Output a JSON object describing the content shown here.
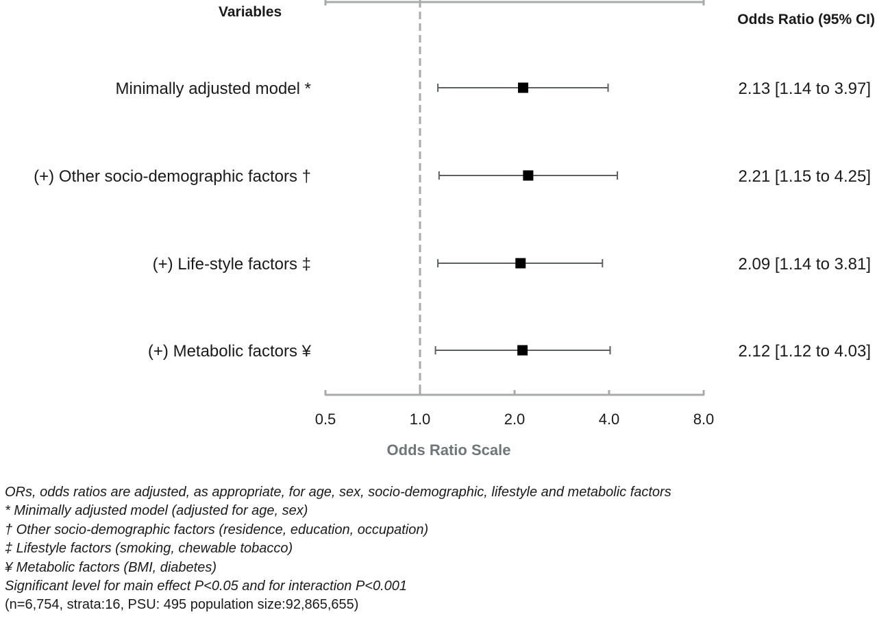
{
  "chart_data": {
    "type": "forest",
    "header_left": "Variables",
    "header_right": "Odds Ratio (95% CI)",
    "xlabel": "Odds Ratio Scale",
    "x_scale": "log2",
    "xlim": [
      0.5,
      8.0
    ],
    "xticks": [
      "0.5",
      "1.0",
      "2.0",
      "4.0",
      "8.0"
    ],
    "reference_line": 1.0,
    "rows": [
      {
        "label": "Minimally adjusted model *",
        "or": 2.13,
        "lo": 1.14,
        "hi": 3.97,
        "text": "2.13 [1.14 to 3.97]"
      },
      {
        "label": "(+) Other socio-demographic factors †",
        "or": 2.21,
        "lo": 1.15,
        "hi": 4.25,
        "text": "2.21 [1.15 to 4.25]"
      },
      {
        "label": "(+) Life-style factors ‡",
        "or": 2.09,
        "lo": 1.14,
        "hi": 3.81,
        "text": "2.09 [1.14 to 3.81]"
      },
      {
        "label": "(+) Metabolic factors ¥",
        "or": 2.12,
        "lo": 1.12,
        "hi": 4.03,
        "text": "2.12 [1.12 to 4.03]"
      }
    ]
  },
  "footnotes": [
    "ORs, odds ratios are adjusted, as appropriate, for age, sex, socio-demographic, lifestyle and metabolic factors",
    "* Minimally adjusted model (adjusted for age, sex)",
    "† Other socio-demographic factors (residence, education, occupation)",
    "‡ Lifestyle factors (smoking, chewable tobacco)",
    "¥ Metabolic factors (BMI, diabetes)",
    "Significant level for main effect P<0.05 and for interaction P<0.001",
    "(n=6,754, strata:16, PSU: 495 population size:92,865,655)"
  ],
  "colors": {
    "axis": "#a7abab",
    "reference_line": "#a7abab",
    "whisker": "#5b5f60",
    "marker": "#000000",
    "axis_title": "#6e7679"
  }
}
